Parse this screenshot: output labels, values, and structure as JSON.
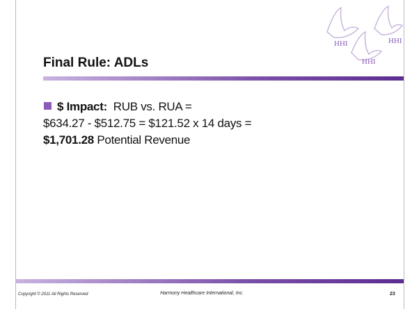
{
  "logo": {
    "marks": [
      "HHI",
      "HHI",
      "HHI"
    ]
  },
  "title": "Final Rule: ADLs",
  "bullet": {
    "label": "$ Impact:",
    "line1": "RUB vs. RUA =",
    "line2": "$634.27 - $512.75 = $121.52 x 14 days =",
    "total": "$1,701.28",
    "total_suffix": "Potential Revenue"
  },
  "footer": {
    "copyright": "Copyright © 2011 All Rights Reserved",
    "company": "Harmony Healthcare International, Inc.",
    "page": "23"
  }
}
